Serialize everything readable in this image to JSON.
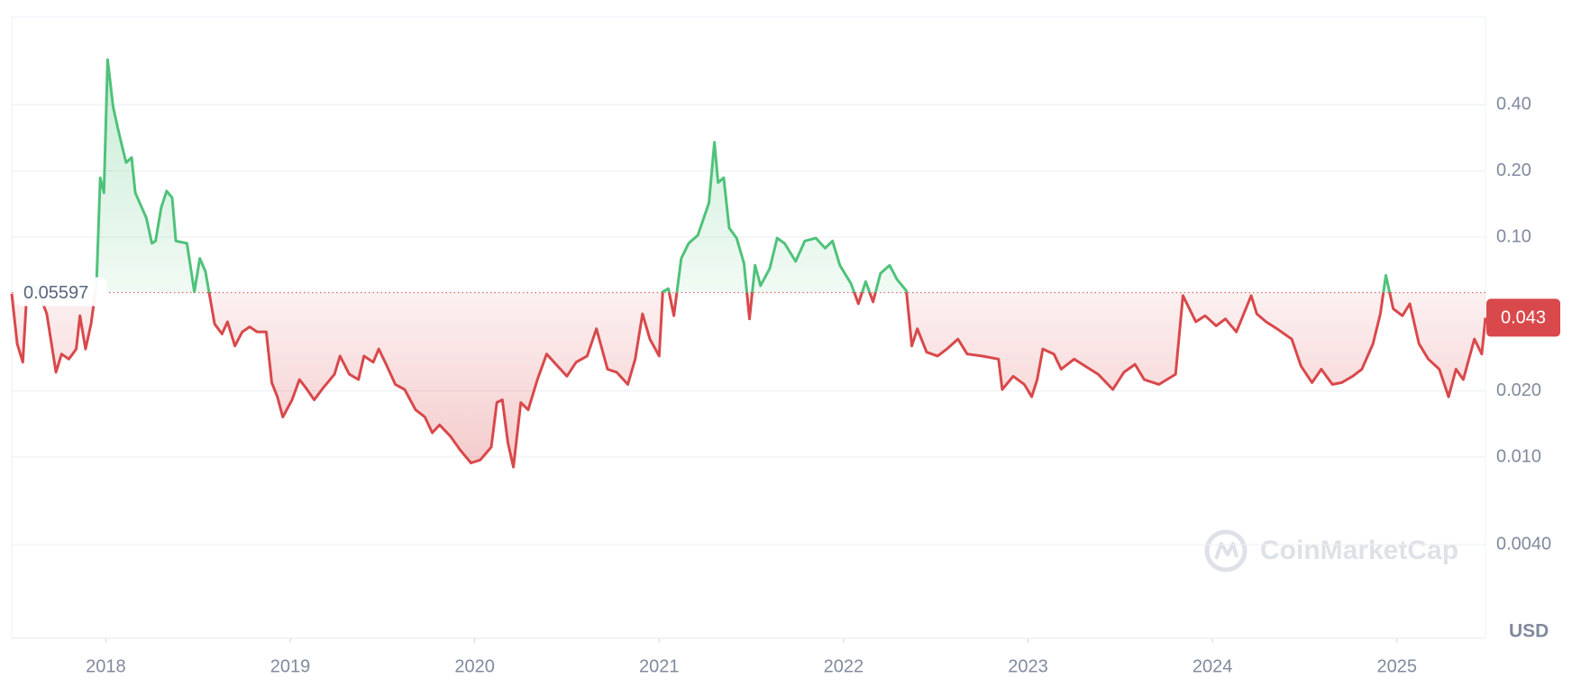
{
  "chart_data": {
    "type": "line",
    "log_scale": true,
    "grid": true,
    "up_color": "#4fc27a",
    "down_color": "#d9484b",
    "baseline": 0.05597,
    "unit": "USD",
    "watermark": "CoinMarketCap",
    "xlim": [
      2017.49,
      2025.48
    ],
    "xticks": [
      2018,
      2019,
      2020,
      2021,
      2022,
      2023,
      2024,
      2025
    ],
    "ylim": [
      0.0015,
      1.0
    ],
    "yticks": [
      {
        "value": 0.4,
        "label": "0.40"
      },
      {
        "value": 0.2,
        "label": "0.20"
      },
      {
        "value": 0.1,
        "label": "0.10"
      },
      {
        "value": 0.02,
        "label": "0.020"
      },
      {
        "value": 0.01,
        "label": "0.010"
      },
      {
        "value": 0.004,
        "label": "0.0040"
      }
    ],
    "x": [
      2017.49,
      2017.52,
      2017.55,
      2017.57,
      2017.6,
      2017.64,
      2017.68,
      2017.73,
      2017.76,
      2017.8,
      2017.84,
      2017.86,
      2017.89,
      2017.92,
      2017.95,
      2017.97,
      2017.99,
      2018.01,
      2018.04,
      2018.07,
      2018.11,
      2018.14,
      2018.16,
      2018.22,
      2018.25,
      2018.27,
      2018.3,
      2018.33,
      2018.36,
      2018.38,
      2018.44,
      2018.48,
      2018.51,
      2018.54,
      2018.59,
      2018.63,
      2018.66,
      2018.7,
      2018.74,
      2018.78,
      2018.82,
      2018.87,
      2018.9,
      2018.93,
      2018.96,
      2019.01,
      2019.05,
      2019.08,
      2019.13,
      2019.18,
      2019.24,
      2019.27,
      2019.32,
      2019.37,
      2019.4,
      2019.45,
      2019.48,
      2019.52,
      2019.57,
      2019.62,
      2019.68,
      2019.73,
      2019.77,
      2019.81,
      2019.87,
      2019.92,
      2019.98,
      2020.03,
      2020.09,
      2020.12,
      2020.15,
      2020.18,
      2020.21,
      2020.25,
      2020.29,
      2020.34,
      2020.39,
      2020.45,
      2020.5,
      2020.55,
      2020.61,
      2020.66,
      2020.72,
      2020.77,
      2020.83,
      2020.87,
      2020.91,
      2020.95,
      2021.0,
      2021.02,
      2021.05,
      2021.08,
      2021.12,
      2021.16,
      2021.21,
      2021.27,
      2021.3,
      2021.32,
      2021.35,
      2021.38,
      2021.42,
      2021.46,
      2021.49,
      2021.52,
      2021.55,
      2021.6,
      2021.64,
      2021.68,
      2021.74,
      2021.79,
      2021.85,
      2021.9,
      2021.94,
      2021.98,
      2022.04,
      2022.08,
      2022.12,
      2022.16,
      2022.2,
      2022.25,
      2022.29,
      2022.34,
      2022.37,
      2022.4,
      2022.45,
      2022.51,
      2022.56,
      2022.62,
      2022.67,
      2022.75,
      2022.84,
      2022.86,
      2022.92,
      2022.98,
      2023.02,
      2023.05,
      2023.08,
      2023.14,
      2023.18,
      2023.25,
      2023.31,
      2023.38,
      2023.46,
      2023.52,
      2023.58,
      2023.63,
      2023.71,
      2023.8,
      2023.84,
      2023.91,
      2023.96,
      2024.02,
      2024.07,
      2024.13,
      2024.21,
      2024.24,
      2024.29,
      2024.35,
      2024.43,
      2024.48,
      2024.54,
      2024.59,
      2024.65,
      2024.7,
      2024.76,
      2024.81,
      2024.87,
      2024.91,
      2024.94,
      2024.98,
      2025.03,
      2025.07,
      2025.12,
      2025.17,
      2025.23,
      2025.28,
      2025.32,
      2025.36,
      2025.42,
      2025.46,
      2025.48
    ],
    "values": [
      0.0553,
      0.0327,
      0.027,
      0.0525,
      0.0615,
      0.0553,
      0.0448,
      0.0243,
      0.0294,
      0.0279,
      0.031,
      0.0439,
      0.031,
      0.0403,
      0.0615,
      0.186,
      0.159,
      0.641,
      0.391,
      0.3,
      0.218,
      0.23,
      0.159,
      0.122,
      0.0937,
      0.096,
      0.136,
      0.162,
      0.151,
      0.096,
      0.0937,
      0.0565,
      0.08,
      0.0698,
      0.0403,
      0.0363,
      0.0412,
      0.032,
      0.0371,
      0.0391,
      0.0371,
      0.0371,
      0.0218,
      0.0188,
      0.0152,
      0.0182,
      0.0225,
      0.0209,
      0.0182,
      0.0207,
      0.0238,
      0.0288,
      0.0238,
      0.0225,
      0.0288,
      0.027,
      0.031,
      0.0264,
      0.0214,
      0.0203,
      0.0164,
      0.0152,
      0.0129,
      0.014,
      0.0124,
      0.0108,
      0.0094,
      0.0097,
      0.0111,
      0.0177,
      0.0182,
      0.0116,
      0.009,
      0.0177,
      0.0164,
      0.0225,
      0.0294,
      0.0259,
      0.0233,
      0.027,
      0.0288,
      0.0383,
      0.0251,
      0.0243,
      0.0214,
      0.0279,
      0.0448,
      0.0344,
      0.0288,
      0.0565,
      0.0583,
      0.0439,
      0.08,
      0.0937,
      0.102,
      0.143,
      0.27,
      0.177,
      0.186,
      0.11,
      0.099,
      0.076,
      0.0425,
      0.0744,
      0.0602,
      0.0721,
      0.099,
      0.0937,
      0.0776,
      0.096,
      0.099,
      0.089,
      0.096,
      0.0744,
      0.0615,
      0.0498,
      0.0628,
      0.0508,
      0.0684,
      0.0744,
      0.0642,
      0.0571,
      0.032,
      0.0383,
      0.03,
      0.0288,
      0.031,
      0.0344,
      0.0294,
      0.0288,
      0.0279,
      0.0203,
      0.0233,
      0.0214,
      0.0188,
      0.0225,
      0.031,
      0.0294,
      0.0251,
      0.0279,
      0.0259,
      0.0238,
      0.0203,
      0.0243,
      0.0264,
      0.0225,
      0.0214,
      0.0238,
      0.0542,
      0.0412,
      0.0439,
      0.0395,
      0.0425,
      0.0371,
      0.0542,
      0.0448,
      0.0412,
      0.0383,
      0.0344,
      0.0259,
      0.0218,
      0.0251,
      0.0214,
      0.0218,
      0.0233,
      0.0251,
      0.0327,
      0.0448,
      0.067,
      0.0472,
      0.0439,
      0.0498,
      0.0327,
      0.0279,
      0.0251,
      0.0188,
      0.0251,
      0.0225,
      0.0344,
      0.0294,
      0.043
    ]
  }
}
